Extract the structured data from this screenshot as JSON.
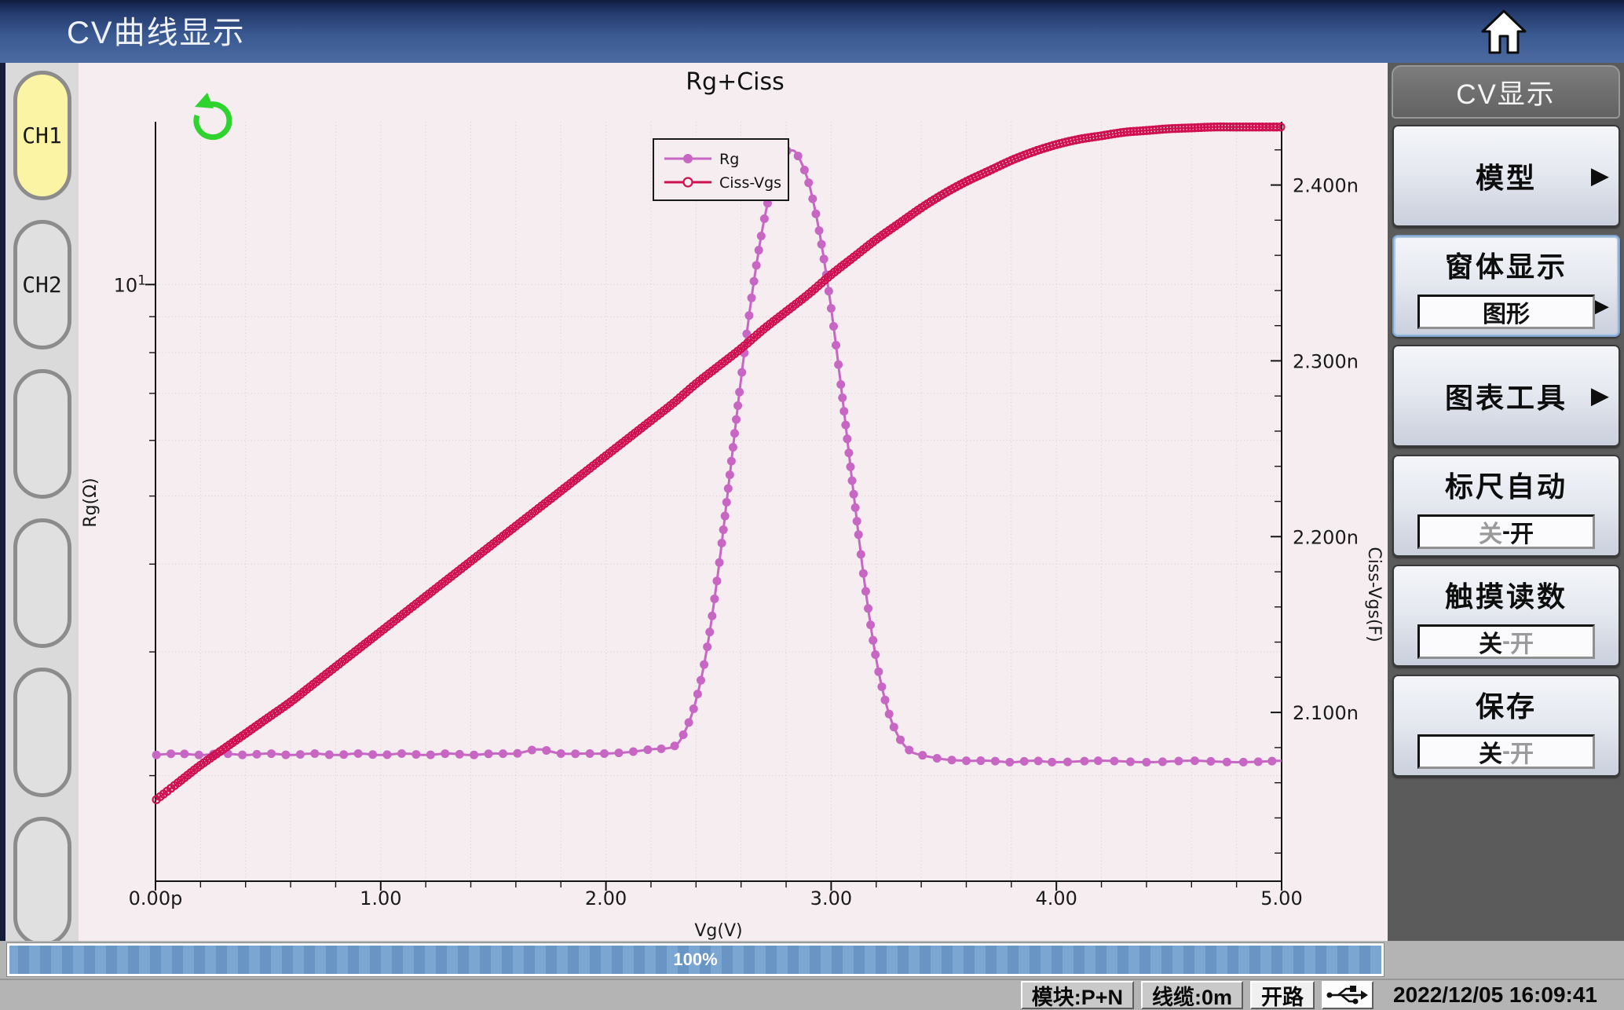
{
  "title_bar": {
    "title": "CV曲线显示"
  },
  "sidebar": {
    "channels": [
      {
        "label": "CH1",
        "active": true
      },
      {
        "label": "CH2",
        "active": false
      },
      {
        "label": "",
        "active": false
      },
      {
        "label": "",
        "active": false
      },
      {
        "label": "",
        "active": false
      },
      {
        "label": "",
        "active": false
      }
    ]
  },
  "menu": {
    "header": "CV显示",
    "buttons": [
      {
        "id": "model",
        "label": "模型",
        "arrow": true
      },
      {
        "id": "window-display",
        "label": "窗体显示",
        "arrow": true,
        "value": "图形",
        "selected": true
      },
      {
        "id": "chart-tools",
        "label": "图表工具",
        "arrow": true
      },
      {
        "id": "auto-scale",
        "label": "标尺自动",
        "toggle": [
          {
            "t": "关",
            "dim": true
          },
          {
            "t": "-",
            "dim": false
          },
          {
            "t": "开",
            "dim": false
          }
        ]
      },
      {
        "id": "touch-readout",
        "label": "触摸读数",
        "toggle": [
          {
            "t": "关",
            "dim": false
          },
          {
            "t": "-",
            "dim": true
          },
          {
            "t": "开",
            "dim": true
          }
        ]
      },
      {
        "id": "save",
        "label": "保存",
        "toggle": [
          {
            "t": "关",
            "dim": false
          },
          {
            "t": "-",
            "dim": true
          },
          {
            "t": "开",
            "dim": true
          }
        ]
      }
    ]
  },
  "progress": {
    "label": "100%"
  },
  "status_bar": {
    "items": [
      {
        "label": "模块:P+N"
      },
      {
        "label": "线缆:0m"
      },
      {
        "label": "开路"
      }
    ],
    "usb_icon": "usb-icon",
    "datetime": "2022/12/05 16:09:41"
  },
  "chart_data": {
    "type": "line",
    "title": "Rg+Ciss",
    "xlabel": "Vg(V)",
    "x_range": [
      0,
      5
    ],
    "x_major_ticks": [
      {
        "v": 0,
        "label": "0.00p"
      },
      {
        "v": 1,
        "label": "1.00"
      },
      {
        "v": 2,
        "label": "2.00"
      },
      {
        "v": 3,
        "label": "3.00"
      },
      {
        "v": 4,
        "label": "4.00"
      },
      {
        "v": 5,
        "label": "5.00"
      }
    ],
    "x_minor_step": 0.2,
    "left_axis": {
      "label": "Rg(Ω)",
      "scale": "log",
      "range": [
        1.415,
        17.05
      ],
      "major_tick": {
        "v": 10,
        "label": "10",
        "exponent": "1"
      },
      "minor_ticks": [
        2,
        3,
        4,
        5,
        6,
        7,
        8,
        9
      ],
      "grid_values": [
        2,
        3,
        4,
        5,
        6,
        7,
        8,
        9,
        10
      ]
    },
    "right_axis": {
      "label": "Ciss-Vgs(F)",
      "scale": "linear",
      "range": [
        2.004,
        2.436
      ],
      "major_ticks": [
        {
          "v": 2.4,
          "label": "2.400n"
        },
        {
          "v": 2.3,
          "label": "2.300n"
        },
        {
          "v": 2.2,
          "label": "2.200n"
        },
        {
          "v": 2.1,
          "label": "2.100n"
        }
      ],
      "minor_step": 0.02
    },
    "legend": {
      "position": "upper-center",
      "entries": [
        "Rg",
        "Ciss-Vgs"
      ]
    },
    "refresh_icon_color": "#2fd32f",
    "grid_color": "#cfcfcf",
    "series": [
      {
        "name": "Rg",
        "axis": "left",
        "color": "#c767c3",
        "marker": "filled-circle",
        "x": [
          0,
          0.1,
          0.2,
          0.3,
          0.4,
          0.5,
          0.6,
          0.7,
          0.8,
          0.9,
          1.0,
          1.1,
          1.2,
          1.3,
          1.4,
          1.5,
          1.6,
          1.7,
          1.8,
          1.9,
          2.0,
          2.1,
          2.2,
          2.3,
          2.35,
          2.4,
          2.45,
          2.5,
          2.55,
          2.6,
          2.65,
          2.7,
          2.75,
          2.8,
          2.82,
          2.85,
          2.9,
          2.95,
          3.0,
          3.05,
          3.1,
          3.15,
          3.2,
          3.25,
          3.3,
          3.35,
          3.4,
          3.5,
          3.6,
          3.7,
          3.8,
          3.9,
          4.0,
          4.2,
          4.4,
          4.6,
          4.8,
          5.0
        ],
        "y": [
          2.14,
          2.15,
          2.14,
          2.15,
          2.14,
          2.15,
          2.14,
          2.15,
          2.14,
          2.15,
          2.14,
          2.15,
          2.14,
          2.15,
          2.14,
          2.15,
          2.15,
          2.18,
          2.15,
          2.15,
          2.15,
          2.16,
          2.18,
          2.2,
          2.31,
          2.56,
          3.05,
          3.94,
          5.36,
          7.34,
          9.75,
          12.24,
          14.31,
          15.43,
          15.53,
          15.3,
          13.96,
          11.76,
          9.25,
          6.9,
          5.03,
          3.73,
          2.93,
          2.49,
          2.27,
          2.17,
          2.14,
          2.11,
          2.1,
          2.1,
          2.09,
          2.1,
          2.09,
          2.1,
          2.09,
          2.1,
          2.09,
          2.1
        ]
      },
      {
        "name": "Ciss-Vgs",
        "axis": "right",
        "color": "#cf1050",
        "marker": "open-circle",
        "x": [
          0,
          0.1,
          0.2,
          0.3,
          0.4,
          0.5,
          0.6,
          0.7,
          0.8,
          0.9,
          1.0,
          1.1,
          1.2,
          1.3,
          1.4,
          1.5,
          1.6,
          1.7,
          1.8,
          1.9,
          2.0,
          2.1,
          2.2,
          2.3,
          2.4,
          2.5,
          2.6,
          2.7,
          2.8,
          2.9,
          3.0,
          3.1,
          3.2,
          3.3,
          3.4,
          3.5,
          3.6,
          3.7,
          3.8,
          3.9,
          4.0,
          4.1,
          4.2,
          4.3,
          4.4,
          4.5,
          4.6,
          4.7,
          4.8,
          4.9,
          5.0
        ],
        "y": [
          2.05,
          2.06,
          2.07,
          2.079,
          2.088,
          2.097,
          2.106,
          2.116,
          2.126,
          2.136,
          2.146,
          2.156,
          2.166,
          2.176,
          2.186,
          2.196,
          2.206,
          2.216,
          2.226,
          2.236,
          2.246,
          2.256,
          2.266,
          2.276,
          2.287,
          2.297,
          2.307,
          2.318,
          2.328,
          2.338,
          2.349,
          2.359,
          2.369,
          2.378,
          2.387,
          2.395,
          2.402,
          2.408,
          2.414,
          2.419,
          2.423,
          2.426,
          2.428,
          2.43,
          2.431,
          2.432,
          2.4325,
          2.433,
          2.433,
          2.433,
          2.433
        ]
      }
    ]
  }
}
